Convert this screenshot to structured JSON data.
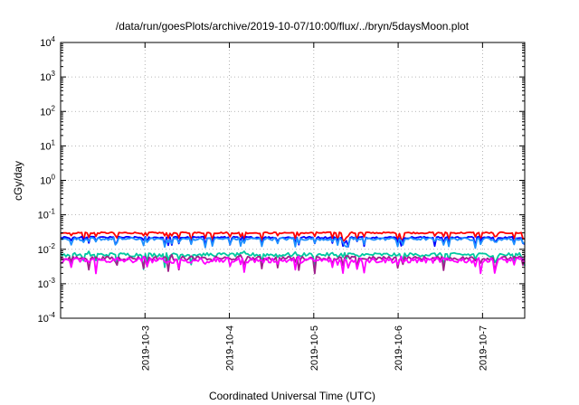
{
  "chart_data": {
    "type": "line",
    "title": "/data/run/goesPlots/archive/2019-10-07/10:00/flux/../bryn/5daysMoon.plot",
    "xlabel": "Coordinated Universal Time (UTC)",
    "ylabel": "cGy/day",
    "x_range": [
      "2019-10-02 00:00",
      "2019-10-07 12:00"
    ],
    "x_ticks": [
      "2019-10-3",
      "2019-10-4",
      "2019-10-5",
      "2019-10-6",
      "2019-10-7"
    ],
    "y_scale": "log",
    "ylim": [
      0.0001,
      10000
    ],
    "y_ticks": [
      {
        "value": 0.0001,
        "base": "10",
        "exp": "-4"
      },
      {
        "value": 0.001,
        "base": "10",
        "exp": "-3"
      },
      {
        "value": 0.01,
        "base": "10",
        "exp": "-2"
      },
      {
        "value": 0.1,
        "base": "10",
        "exp": "-1"
      },
      {
        "value": 1,
        "base": "10",
        "exp": "0"
      },
      {
        "value": 10,
        "base": "10",
        "exp": "1"
      },
      {
        "value": 100,
        "base": "10",
        "exp": "2"
      },
      {
        "value": 1000,
        "base": "10",
        "exp": "3"
      },
      {
        "value": 10000,
        "base": "10",
        "exp": "4"
      }
    ],
    "grid": true,
    "series": [
      {
        "color": "#ff0000",
        "baseline": 0.03,
        "spread": 0.1
      },
      {
        "color": "#0000ff",
        "baseline": 0.022,
        "spread": 0.12
      },
      {
        "color": "#1e90ff",
        "baseline": 0.02,
        "spread": 0.18
      },
      {
        "color": "#00c8a0",
        "baseline": 0.007,
        "spread": 0.25
      },
      {
        "color": "#a0208c",
        "baseline": 0.0055,
        "spread": 0.25
      },
      {
        "color": "#ff00ff",
        "baseline": 0.0048,
        "spread": 0.35
      }
    ]
  }
}
